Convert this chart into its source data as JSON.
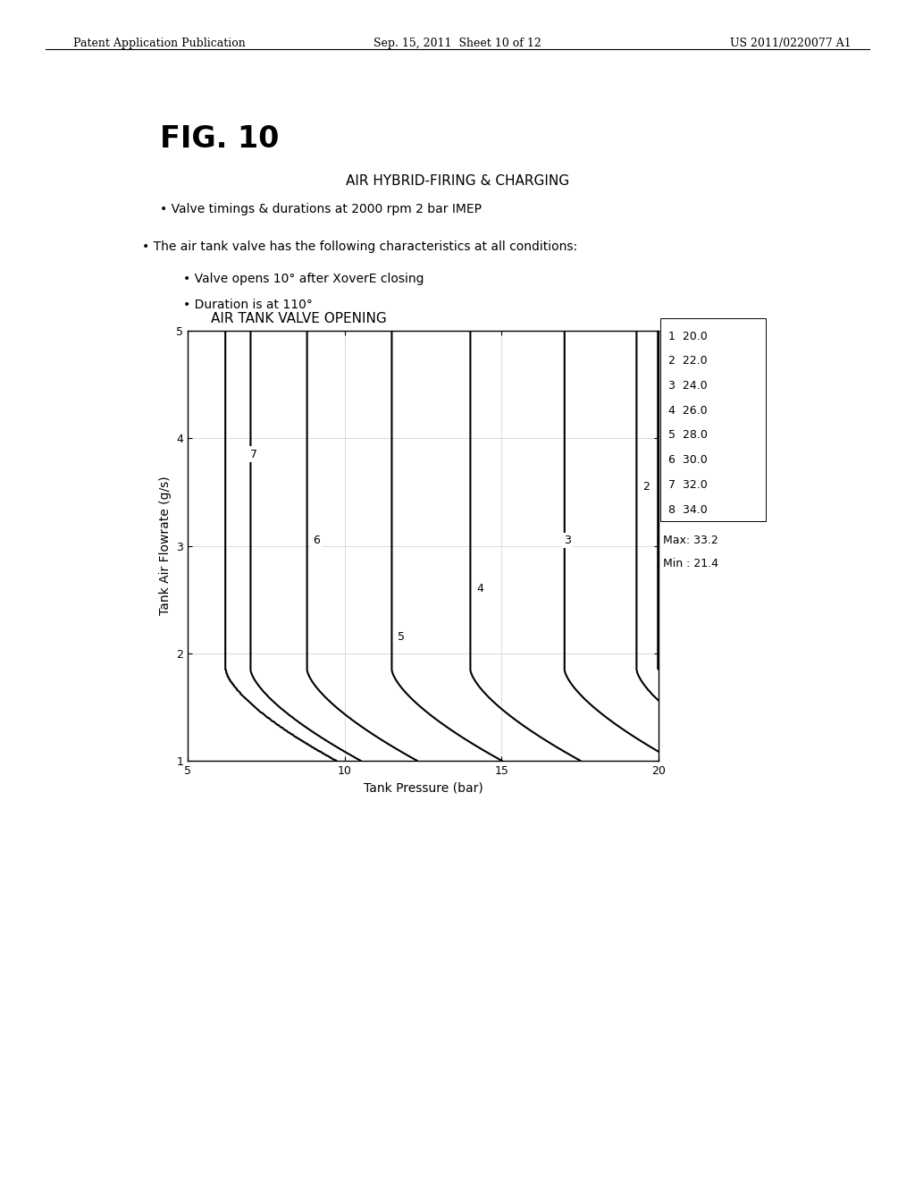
{
  "fig_label": "FIG. 10",
  "title1": "AIR HYBRID-FIRING & CHARGING",
  "title2": "• Valve timings & durations at 2000 rpm 2 bar IMEP",
  "bullet1": "• The air tank valve has the following characteristics at all conditions:",
  "bullet2": "• Valve opens 10° after XoverE closing",
  "bullet3": "• Duration is at 110°",
  "plot_title": "AIR TANK VALVE OPENING",
  "xlabel": "Tank Pressure (bar)",
  "ylabel": "Tank Air Flowrate (g/s)",
  "xlim": [
    5,
    20
  ],
  "ylim": [
    1,
    5
  ],
  "xticks": [
    5,
    10,
    15,
    20
  ],
  "yticks": [
    1,
    2,
    3,
    4,
    5
  ],
  "legend_entries": [
    [
      "1",
      "20.0"
    ],
    [
      "2",
      "22.0"
    ],
    [
      "3",
      "24.0"
    ],
    [
      "4",
      "26.0"
    ],
    [
      "5",
      "28.0"
    ],
    [
      "6",
      "30.0"
    ],
    [
      "7",
      "32.0"
    ],
    [
      "8",
      "34.0"
    ]
  ],
  "legend_max": "Max: 33.2",
  "legend_min": "Min : 21.4",
  "header_left": "Patent Application Publication",
  "header_mid": "Sep. 15, 2011  Sheet 10 of 12",
  "header_right": "US 2011/0220077 A1",
  "contour_levels": [
    20.0,
    22.0,
    24.0,
    26.0,
    28.0,
    30.0,
    32.0,
    34.0
  ],
  "background_color": "#ffffff",
  "contour_line_labels": {
    "20.0": "1",
    "22.0": "2",
    "24.0": "3",
    "26.0": "4",
    "28.0": "5",
    "30.0": "6",
    "32.0": "7",
    "34.0": "8"
  },
  "label_positions": [
    [
      20.0,
      null
    ],
    [
      22.0,
      [
        19.6,
        3.55
      ]
    ],
    [
      24.0,
      [
        17.1,
        3.05
      ]
    ],
    [
      26.0,
      [
        14.3,
        2.6
      ]
    ],
    [
      28.0,
      [
        11.8,
        2.15
      ]
    ],
    [
      30.0,
      [
        9.1,
        3.05
      ]
    ],
    [
      32.0,
      [
        7.1,
        3.85
      ]
    ],
    [
      34.0,
      null
    ]
  ]
}
